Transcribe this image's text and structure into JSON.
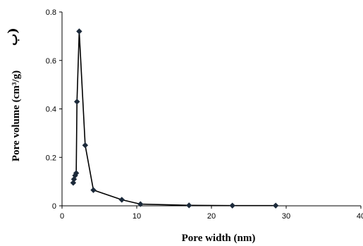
{
  "chart_data": {
    "type": "line",
    "title": "",
    "panel_label": "ب)",
    "xlabel": "Pore width (nm)",
    "ylabel": "Pore volume (cm³/g)",
    "xlim": [
      0,
      40
    ],
    "ylim": [
      0,
      0.8
    ],
    "x_ticks": [
      0,
      10,
      20,
      30,
      40
    ],
    "y_ticks": [
      0,
      0.2,
      0.4,
      0.6,
      0.8
    ],
    "x_tick_labels": [
      "0",
      "10",
      "20",
      "30",
      "40"
    ],
    "y_tick_labels": [
      "0",
      "0.2",
      "0.4",
      "0.6",
      "0.8"
    ],
    "grid": false,
    "legend": "none",
    "marker": "diamond",
    "line_color": "#000000",
    "marker_color": "#1c2a3a",
    "series": [
      {
        "x": [
          1.5,
          1.6,
          1.75,
          1.9,
          2.0,
          2.3,
          3.1,
          4.2,
          8.0,
          10.5,
          17.0,
          22.8,
          28.6
        ],
        "y": [
          0.095,
          0.11,
          0.125,
          0.135,
          0.43,
          0.72,
          0.25,
          0.065,
          0.025,
          0.007,
          0.002,
          0.001,
          0.001
        ]
      }
    ]
  }
}
